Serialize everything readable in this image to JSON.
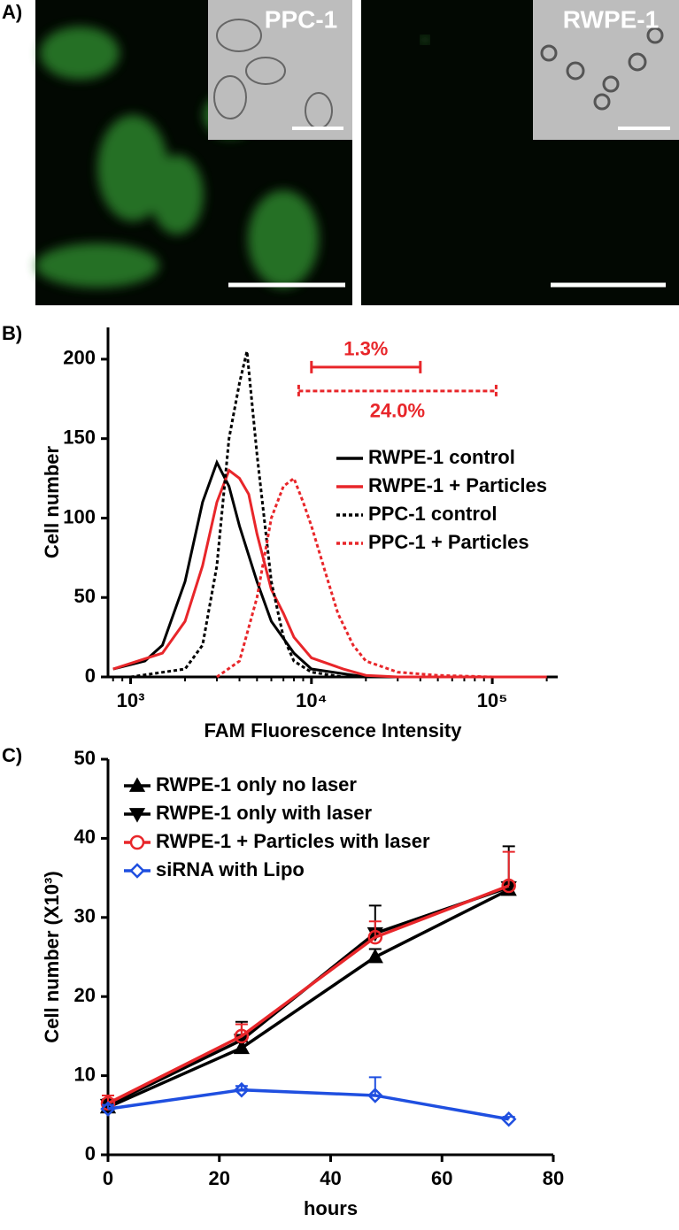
{
  "panel_a": {
    "label": "A)",
    "images": [
      {
        "caption": "PPC-1"
      },
      {
        "caption": "RWPE-1"
      }
    ]
  },
  "chart_data": [
    {
      "type": "line",
      "label": "B)",
      "xlabel": "FAM Fluorescence Intensity",
      "ylabel": "Cell number",
      "xscale": "log",
      "xlim": [
        750,
        230000
      ],
      "ylim": [
        0,
        220
      ],
      "xticks": [
        {
          "value": 1000,
          "label": "10³"
        },
        {
          "value": 10000,
          "label": "10⁴"
        },
        {
          "value": 100000,
          "label": "10⁵"
        }
      ],
      "yticks": [
        0,
        50,
        100,
        150,
        200
      ],
      "legend": "right",
      "series": [
        {
          "name": "RWPE-1 control",
          "color": "#000000",
          "dashed": false,
          "x": [
            800,
            1200,
            1500,
            2000,
            2500,
            3000,
            3500,
            4000,
            5000,
            6000,
            8000,
            10000,
            15000,
            20000,
            50000,
            200000
          ],
          "values": [
            5,
            10,
            20,
            60,
            110,
            135,
            120,
            95,
            60,
            35,
            15,
            5,
            2,
            0,
            0,
            0
          ]
        },
        {
          "name": "RWPE-1 + Particles",
          "color": "#e8262a",
          "dashed": false,
          "x": [
            800,
            1500,
            2000,
            2500,
            3000,
            3500,
            4000,
            4500,
            5000,
            6000,
            7000,
            8000,
            10000,
            15000,
            20000,
            30000,
            200000
          ],
          "values": [
            5,
            15,
            35,
            70,
            110,
            130,
            125,
            115,
            90,
            55,
            40,
            25,
            12,
            5,
            1,
            0,
            0
          ]
        },
        {
          "name": "PPC-1 control",
          "color": "#000000",
          "dashed": true,
          "x": [
            1000,
            2000,
            2500,
            3000,
            3500,
            4000,
            4400,
            5000,
            6000,
            7000,
            8000,
            10000,
            15000
          ],
          "values": [
            0,
            5,
            20,
            70,
            150,
            185,
            205,
            140,
            60,
            25,
            10,
            3,
            0
          ]
        },
        {
          "name": "PPC-1 + Particles",
          "color": "#e8262a",
          "dashed": true,
          "x": [
            3000,
            4000,
            5000,
            6000,
            7000,
            8000,
            9000,
            10000,
            12000,
            14000,
            17000,
            20000,
            30000,
            50000,
            100000,
            200000
          ],
          "values": [
            0,
            10,
            50,
            100,
            120,
            125,
            110,
            95,
            65,
            40,
            20,
            10,
            3,
            1,
            0,
            0
          ]
        }
      ],
      "annotations": [
        {
          "text": "1.3%",
          "x": [
            10000,
            40000
          ],
          "y": 195,
          "color": "#e8262a",
          "dashed": false
        },
        {
          "text": "24.0%",
          "x": [
            8500,
            105000
          ],
          "y": 180,
          "color": "#e8262a",
          "dashed": true
        }
      ]
    },
    {
      "type": "line",
      "label": "C)",
      "xlabel": "hours",
      "ylabel": "Cell number (X10³)",
      "xlim": [
        0,
        80
      ],
      "ylim": [
        0,
        50
      ],
      "xticks": [
        0,
        20,
        40,
        60,
        80
      ],
      "yticks": [
        0,
        10,
        20,
        30,
        40,
        50
      ],
      "legend": "upper left",
      "x": [
        0,
        24,
        48,
        72
      ],
      "series": [
        {
          "name": "RWPE-1 only no laser",
          "color": "#000000",
          "marker": "triangle-up",
          "values": [
            6,
            13.5,
            25,
            33.5
          ],
          "errors": [
            1.0,
            0.8,
            1.0,
            1.0
          ]
        },
        {
          "name": "RWPE-1 only with laser",
          "color": "#000000",
          "marker": "triangle-down",
          "values": [
            6.3,
            14.5,
            28,
            33.8
          ],
          "errors": [
            1.2,
            2.3,
            3.5,
            5.2
          ]
        },
        {
          "name": "RWPE-1 + Particles with laser",
          "color": "#e8262a",
          "marker": "circle",
          "values": [
            6.5,
            15,
            27.5,
            34
          ],
          "errors": [
            1.0,
            1.5,
            2.0,
            4.3
          ]
        },
        {
          "name": "siRNA with Lipo",
          "color": "#1f4fe0",
          "marker": "diamond",
          "values": [
            5.8,
            8.2,
            7.5,
            4.5
          ],
          "errors": [
            0.5,
            0.5,
            2.3,
            0.3
          ]
        }
      ]
    }
  ]
}
